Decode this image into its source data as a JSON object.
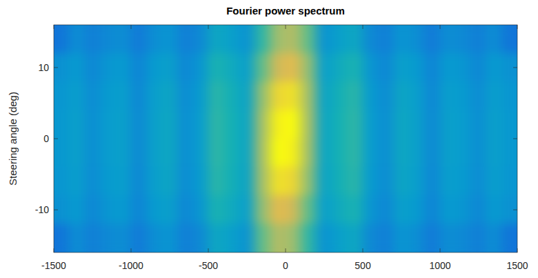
{
  "chart_data": {
    "type": "heatmap",
    "title": "Fourier power spectrum",
    "y_label": "Steering angle (deg)",
    "x": [
      -1450,
      -1350,
      -1250,
      -1150,
      -1050,
      -950,
      -850,
      -750,
      -650,
      -550,
      -450,
      -350,
      -250,
      -150,
      -50,
      50,
      150,
      250,
      350,
      450,
      550,
      650,
      750,
      850,
      950,
      1050,
      1150,
      1250,
      1350,
      1450
    ],
    "y": [
      14,
      10,
      6,
      2,
      -2,
      -6,
      -10,
      -14
    ],
    "cells": [
      [
        0.22,
        0.32,
        0.26,
        0.3,
        0.32,
        0.24,
        0.32,
        0.35,
        0.26,
        0.3,
        0.44,
        0.4,
        0.34,
        0.55,
        0.74,
        0.78,
        0.64,
        0.34,
        0.4,
        0.44,
        0.3,
        0.26,
        0.35,
        0.32,
        0.24,
        0.32,
        0.3,
        0.26,
        0.32,
        0.22
      ],
      [
        0.33,
        0.37,
        0.29,
        0.35,
        0.37,
        0.28,
        0.37,
        0.4,
        0.29,
        0.35,
        0.51,
        0.46,
        0.39,
        0.64,
        0.84,
        0.88,
        0.72,
        0.39,
        0.46,
        0.51,
        0.35,
        0.29,
        0.4,
        0.37,
        0.28,
        0.37,
        0.35,
        0.29,
        0.37,
        0.33
      ],
      [
        0.35,
        0.39,
        0.31,
        0.37,
        0.39,
        0.29,
        0.39,
        0.43,
        0.31,
        0.37,
        0.54,
        0.49,
        0.41,
        0.72,
        0.93,
        0.95,
        0.75,
        0.41,
        0.49,
        0.54,
        0.37,
        0.31,
        0.43,
        0.39,
        0.29,
        0.39,
        0.37,
        0.31,
        0.39,
        0.35
      ],
      [
        0.36,
        0.4,
        0.32,
        0.38,
        0.4,
        0.3,
        0.4,
        0.44,
        0.32,
        0.38,
        0.55,
        0.5,
        0.42,
        0.75,
        0.98,
        1.0,
        0.76,
        0.42,
        0.5,
        0.55,
        0.38,
        0.32,
        0.44,
        0.4,
        0.3,
        0.4,
        0.38,
        0.32,
        0.4,
        0.36
      ],
      [
        0.36,
        0.4,
        0.32,
        0.38,
        0.4,
        0.3,
        0.4,
        0.44,
        0.32,
        0.38,
        0.55,
        0.5,
        0.42,
        0.76,
        1.0,
        0.98,
        0.75,
        0.42,
        0.5,
        0.55,
        0.38,
        0.32,
        0.44,
        0.4,
        0.3,
        0.4,
        0.38,
        0.32,
        0.4,
        0.36
      ],
      [
        0.35,
        0.39,
        0.31,
        0.37,
        0.39,
        0.29,
        0.39,
        0.43,
        0.31,
        0.37,
        0.54,
        0.49,
        0.41,
        0.75,
        0.95,
        0.93,
        0.72,
        0.41,
        0.49,
        0.54,
        0.37,
        0.31,
        0.43,
        0.39,
        0.29,
        0.39,
        0.37,
        0.31,
        0.39,
        0.35
      ],
      [
        0.33,
        0.37,
        0.29,
        0.35,
        0.37,
        0.28,
        0.37,
        0.4,
        0.29,
        0.35,
        0.51,
        0.46,
        0.39,
        0.72,
        0.88,
        0.84,
        0.64,
        0.39,
        0.46,
        0.51,
        0.35,
        0.29,
        0.4,
        0.37,
        0.28,
        0.37,
        0.35,
        0.29,
        0.37,
        0.33
      ],
      [
        0.22,
        0.32,
        0.26,
        0.3,
        0.32,
        0.24,
        0.32,
        0.35,
        0.26,
        0.3,
        0.44,
        0.4,
        0.34,
        0.64,
        0.78,
        0.74,
        0.55,
        0.34,
        0.4,
        0.44,
        0.3,
        0.26,
        0.35,
        0.32,
        0.24,
        0.32,
        0.3,
        0.26,
        0.32,
        0.22
      ]
    ],
    "clim": [
      0,
      1
    ],
    "xlim": [
      -1500,
      1500
    ],
    "ylim": [
      -16,
      16
    ],
    "xticks": [
      -1500,
      -1000,
      -500,
      0,
      500,
      1000,
      1500
    ],
    "yticks": [
      -10,
      0,
      10
    ]
  }
}
